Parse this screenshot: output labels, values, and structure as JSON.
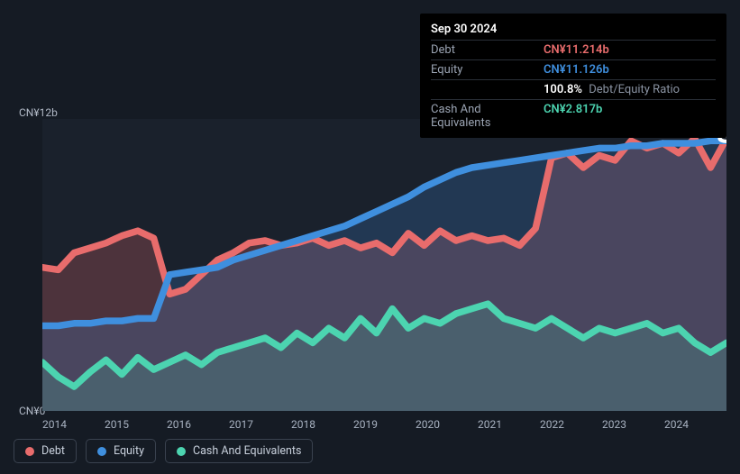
{
  "tooltip": {
    "date": "Sep 30 2024",
    "rows": [
      {
        "label": "Debt",
        "value": "CN¥11.214b",
        "color": "#e86c6c"
      },
      {
        "label": "Equity",
        "value": "CN¥11.126b",
        "color": "#3f8fde"
      },
      {
        "label": "",
        "value": "",
        "ratio_value": "100.8%",
        "ratio_label": "Debt/Equity Ratio"
      },
      {
        "label": "Cash And Equivalents",
        "value": "CN¥2.817b",
        "color": "#4cd4b0"
      }
    ]
  },
  "chart": {
    "type": "area",
    "background": "#1a212c",
    "ylim": [
      0,
      12
    ],
    "y_top_label": "CN¥12b",
    "y_bottom_label": "CN¥0",
    "x_ticks": [
      "2014",
      "2015",
      "2016",
      "2017",
      "2018",
      "2019",
      "2020",
      "2021",
      "2022",
      "2023",
      "2024"
    ],
    "x_count": 44,
    "series": [
      {
        "name": "Debt",
        "color": "#e86c6c",
        "fill_opacity": 0.25,
        "line_width": 2.5,
        "data": [
          5.9,
          5.8,
          6.5,
          6.7,
          6.9,
          7.2,
          7.4,
          7.1,
          4.8,
          5.0,
          5.6,
          6.2,
          6.5,
          6.9,
          7.0,
          6.8,
          6.9,
          7.1,
          6.8,
          7.0,
          6.7,
          6.9,
          6.5,
          7.3,
          6.8,
          7.4,
          7.0,
          7.2,
          7.0,
          7.1,
          6.8,
          7.5,
          10.4,
          10.6,
          10.0,
          10.5,
          10.3,
          11.1,
          10.8,
          11.0,
          10.6,
          11.2,
          10.0,
          11.2
        ]
      },
      {
        "name": "Equity",
        "color": "#3f8fde",
        "fill_opacity": 0.22,
        "line_width": 2.5,
        "data": [
          3.5,
          3.5,
          3.6,
          3.6,
          3.7,
          3.7,
          3.8,
          3.8,
          5.6,
          5.7,
          5.8,
          5.9,
          6.2,
          6.4,
          6.6,
          6.8,
          7.0,
          7.2,
          7.4,
          7.6,
          7.9,
          8.2,
          8.5,
          8.8,
          9.2,
          9.5,
          9.8,
          10.0,
          10.1,
          10.2,
          10.3,
          10.4,
          10.5,
          10.6,
          10.7,
          10.8,
          10.8,
          10.9,
          10.9,
          11.0,
          11.0,
          11.0,
          11.1,
          11.1
        ]
      },
      {
        "name": "Cash And Equivalents",
        "color": "#4cd4b0",
        "fill_opacity": 0.18,
        "line_width": 2.5,
        "data": [
          2.0,
          1.4,
          1.0,
          1.6,
          2.1,
          1.5,
          2.2,
          1.7,
          2.0,
          2.3,
          1.9,
          2.4,
          2.6,
          2.8,
          3.0,
          2.6,
          3.2,
          2.8,
          3.4,
          3.0,
          3.8,
          3.2,
          4.2,
          3.4,
          3.8,
          3.6,
          4.0,
          4.2,
          4.4,
          3.8,
          3.6,
          3.4,
          3.8,
          3.4,
          3.0,
          3.4,
          3.2,
          3.4,
          3.6,
          3.2,
          3.4,
          2.8,
          2.4,
          2.8
        ]
      }
    ],
    "hover_x_index": 43
  },
  "legend": [
    {
      "label": "Debt",
      "color": "#e86c6c"
    },
    {
      "label": "Equity",
      "color": "#3f8fde"
    },
    {
      "label": "Cash And Equivalents",
      "color": "#4cd4b0"
    }
  ]
}
